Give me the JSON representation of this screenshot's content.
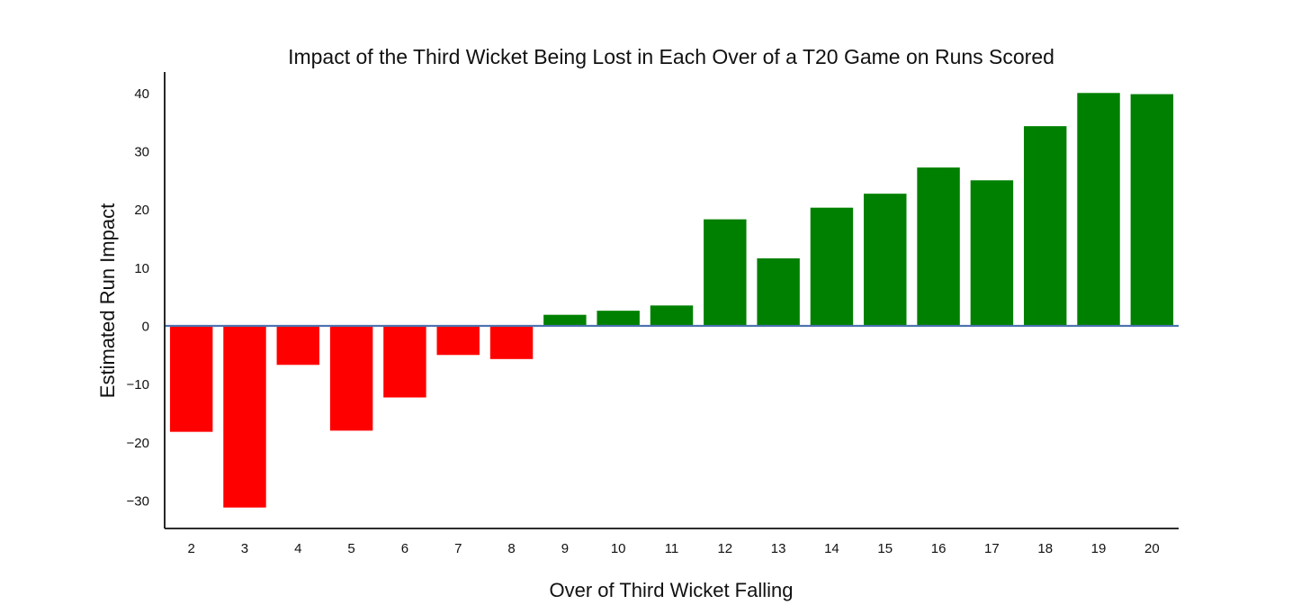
{
  "chart_data": {
    "type": "bar",
    "title": "Impact of the Third Wicket Being Lost in Each Over of a T20 Game on Runs Scored",
    "xlabel": "Over of Third Wicket Falling",
    "ylabel": "Estimated Run Impact",
    "categories": [
      "2",
      "3",
      "4",
      "5",
      "6",
      "7",
      "8",
      "9",
      "10",
      "11",
      "12",
      "13",
      "14",
      "15",
      "16",
      "17",
      "18",
      "19",
      "20"
    ],
    "values": [
      -18.2,
      -31.2,
      -6.7,
      -18.0,
      -12.3,
      -5.0,
      -5.7,
      1.9,
      2.6,
      3.5,
      18.3,
      11.6,
      20.3,
      22.7,
      27.2,
      25.0,
      34.3,
      40.0,
      39.8
    ],
    "ylim": [
      -34.8,
      43.6
    ],
    "yticks": [
      40,
      30,
      20,
      10,
      0,
      -10,
      -20,
      -30
    ],
    "ytick_labels": [
      "40",
      "30",
      "20",
      "10",
      "0",
      "−10",
      "−20",
      "−30"
    ],
    "colors": {
      "negative": "#ff0000",
      "positive": "#008000",
      "zero_line": "#4c72b0",
      "axis": "#111111"
    },
    "grid": false
  }
}
